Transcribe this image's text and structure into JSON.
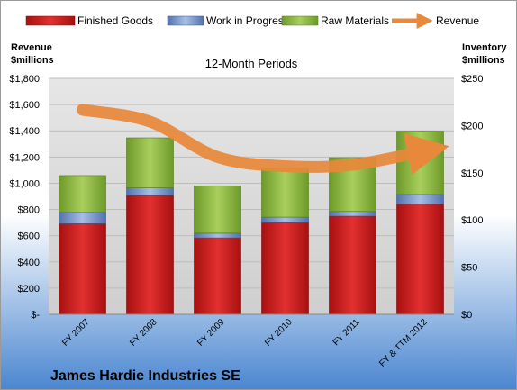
{
  "company": "James Hardie Industries SE",
  "chart_data": {
    "type": "bar",
    "title": "12-Month Periods",
    "stacked": true,
    "categories": [
      "FY 2007",
      "FY 2008",
      "FY 2009",
      "FY 2010",
      "FY 2011",
      "FY & TTM 2012"
    ],
    "left_axis": {
      "label_line1": "Revenue",
      "label_line2": "$millions",
      "ylim": [
        0,
        1800
      ],
      "ticks": [
        0,
        200,
        400,
        600,
        800,
        1000,
        1200,
        1400,
        1600,
        1800
      ],
      "tick_labels": [
        "$-",
        "$200",
        "$400",
        "$600",
        "$800",
        "$1,000",
        "$1,200",
        "$1,400",
        "$1,600",
        "$1,800"
      ]
    },
    "right_axis": {
      "label_line1": "Inventory",
      "label_line2": "$millions",
      "ylim": [
        0,
        250
      ],
      "ticks": [
        0,
        50,
        100,
        150,
        200,
        250
      ],
      "tick_labels": [
        "$0",
        "$50",
        "$100",
        "$150",
        "$200",
        "$250"
      ]
    },
    "series": [
      {
        "name": "Finished Goods",
        "axis": "right",
        "kind": "bar",
        "color": "#d42020",
        "values": [
          96,
          126,
          81,
          97,
          104,
          117
        ]
      },
      {
        "name": "Work in Progress",
        "axis": "right",
        "kind": "bar",
        "color": "#6f90c8",
        "values": [
          12,
          8,
          5,
          6,
          5,
          10
        ]
      },
      {
        "name": "Raw Materials",
        "axis": "right",
        "kind": "bar",
        "color": "#8bb63c",
        "values": [
          39,
          53,
          50,
          52,
          57,
          67
        ]
      },
      {
        "name": "Revenue",
        "axis": "left",
        "kind": "line",
        "color": "#e8883a",
        "values": [
          1560,
          1470,
          1200,
          1130,
          1140,
          1240
        ]
      }
    ],
    "grid": true,
    "legend": "top"
  }
}
